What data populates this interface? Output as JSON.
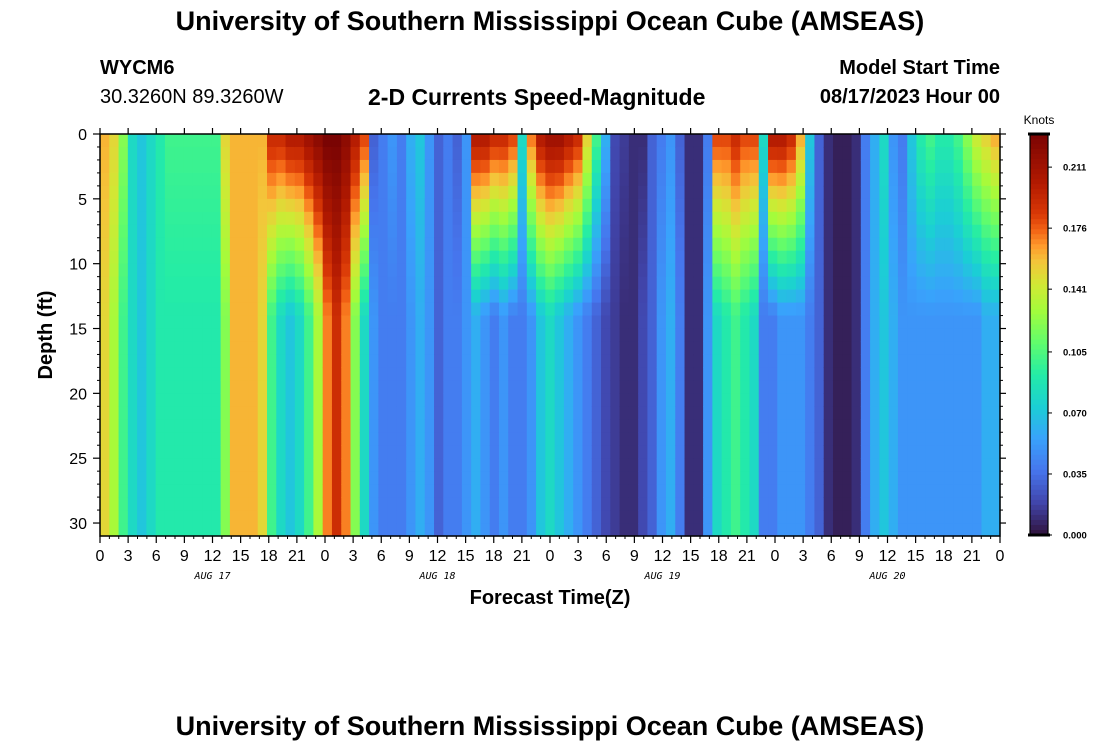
{
  "header": {
    "title": "University of Southern Mississippi Ocean Cube (AMSEAS)",
    "station_id": "WYCM6",
    "coordinates": "30.3260N  89.3260W",
    "plot_title": "2-D Currents Speed-Magnitude",
    "model_start_label": "Model Start Time",
    "model_start_value": "08/17/2023 Hour 00"
  },
  "footer": {
    "title": "University of Southern Mississippi Ocean Cube (AMSEAS)"
  },
  "colors": {
    "background": "#ffffff",
    "axis": "#000000"
  },
  "chart_data": {
    "type": "heatmap",
    "title": "2-D Currents Speed-Magnitude",
    "xlabel": "Forecast Time(Z)",
    "ylabel": "Depth (ft)",
    "x_hours_range": [
      0,
      96
    ],
    "y_depth_range_ft": [
      0,
      31
    ],
    "x_tick_labels": [
      "0",
      "3",
      "6",
      "9",
      "12",
      "15",
      "18",
      "21",
      "0",
      "3",
      "6",
      "9",
      "12",
      "15",
      "18",
      "21",
      "0",
      "3",
      "6",
      "9",
      "12",
      "15",
      "18",
      "21",
      "0",
      "3",
      "6",
      "9",
      "12",
      "15",
      "18",
      "21",
      "0"
    ],
    "y_ticks": [
      0,
      5,
      10,
      15,
      20,
      25,
      30
    ],
    "day_labels": [
      {
        "label": "AUG 17",
        "hour": 12
      },
      {
        "label": "AUG 18",
        "hour": 36
      },
      {
        "label": "AUG 19",
        "hour": 60
      },
      {
        "label": "AUG 20",
        "hour": 84
      }
    ],
    "colorbar": {
      "unit": "Knots",
      "min": 0.0,
      "max": 0.23,
      "ticks": [
        "0.211",
        "0.176",
        "0.141",
        "0.105",
        "0.070",
        "0.035",
        "0.000"
      ],
      "tick_values": [
        0.211,
        0.176,
        0.141,
        0.105,
        0.07,
        0.035,
        0.0
      ]
    },
    "speed_knots_hourly_surface": [
      0.16,
      0.15,
      0.12,
      0.08,
      0.07,
      0.08,
      0.09,
      0.1,
      0.1,
      0.1,
      0.1,
      0.1,
      0.1,
      0.15,
      0.16,
      0.16,
      0.16,
      0.16,
      0.19,
      0.19,
      0.2,
      0.2,
      0.21,
      0.22,
      0.23,
      0.23,
      0.22,
      0.2,
      0.18,
      0.03,
      0.04,
      0.05,
      0.04,
      0.06,
      0.07,
      0.05,
      0.03,
      0.04,
      0.03,
      0.05,
      0.2,
      0.2,
      0.19,
      0.19,
      0.18,
      0.08,
      0.17,
      0.2,
      0.21,
      0.21,
      0.2,
      0.19,
      0.15,
      0.1,
      0.06,
      0.02,
      0.015,
      0.01,
      0.01,
      0.03,
      0.04,
      0.05,
      0.03,
      0.01,
      0.01,
      0.04,
      0.18,
      0.18,
      0.19,
      0.18,
      0.18,
      0.08,
      0.2,
      0.2,
      0.19,
      0.16,
      0.07,
      0.03,
      0.01,
      0.005,
      0.005,
      0.01,
      0.04,
      0.06,
      0.08,
      0.05,
      0.04,
      0.07,
      0.09,
      0.1,
      0.09,
      0.09,
      0.1,
      0.12,
      0.14,
      0.15,
      0.16
    ],
    "speed_knots_hourly_bottom": [
      0.15,
      0.13,
      0.1,
      0.08,
      0.07,
      0.08,
      0.09,
      0.09,
      0.09,
      0.09,
      0.09,
      0.09,
      0.09,
      0.12,
      0.16,
      0.16,
      0.16,
      0.15,
      0.1,
      0.08,
      0.07,
      0.08,
      0.1,
      0.13,
      0.17,
      0.19,
      0.17,
      0.12,
      0.08,
      0.05,
      0.04,
      0.04,
      0.04,
      0.05,
      0.06,
      0.05,
      0.03,
      0.04,
      0.04,
      0.05,
      0.06,
      0.05,
      0.04,
      0.05,
      0.04,
      0.04,
      0.05,
      0.07,
      0.08,
      0.07,
      0.06,
      0.05,
      0.04,
      0.03,
      0.02,
      0.015,
      0.01,
      0.01,
      0.02,
      0.03,
      0.05,
      0.06,
      0.04,
      0.01,
      0.01,
      0.05,
      0.08,
      0.09,
      0.1,
      0.09,
      0.08,
      0.04,
      0.04,
      0.05,
      0.05,
      0.05,
      0.04,
      0.03,
      0.01,
      0.005,
      0.005,
      0.01,
      0.04,
      0.06,
      0.07,
      0.06,
      0.05,
      0.05,
      0.05,
      0.05,
      0.05,
      0.05,
      0.05,
      0.05,
      0.05,
      0.06,
      0.06
    ]
  }
}
